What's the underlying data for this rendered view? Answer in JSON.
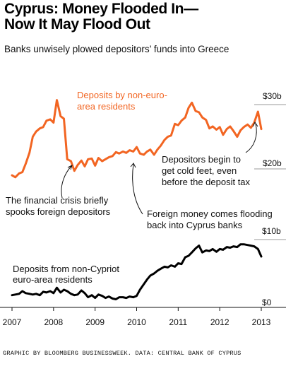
{
  "header": {
    "title_line1": "Cyprus: Money Flooded In—",
    "title_line2": "Now It May Flood Out",
    "subtitle": "Banks unwisely plowed depositors’ funds into Greece"
  },
  "footer": {
    "credit": "GRAPHIC BY BLOOMBERG BUSINESSWEEK. DATA: CENTRAL BANK OF CYPRUS"
  },
  "colors": {
    "non_euro_series": "#f26522",
    "euro_series": "#000000"
  },
  "annotations": {
    "non_euro_label_line1": "Deposits by non-euro-",
    "non_euro_label_line2": "area residents",
    "euro_label_line1": "Deposits from non-Cypriot",
    "euro_label_line2": "euro-area residents",
    "crisis_line1": "The financial crisis briefly",
    "crisis_line2": "spooks foreign depositors",
    "flood_line1": "Foreign money comes flooding",
    "flood_line2": "back into Cyprus banks",
    "feet_line1": "Depositors begin to",
    "feet_line2": "get cold feet, even",
    "feet_line3": "before the deposit tax"
  },
  "chart_data": [
    {
      "type": "line",
      "name": "Deposits by non-euro-area residents",
      "ylabel_ticks": [
        "$30b",
        "$20b"
      ],
      "ylim": [
        11.5,
        33
      ],
      "xlim": [
        2007.0,
        2013.0
      ],
      "x_ticks": [
        "2007",
        "2008",
        "2009",
        "2010",
        "2011",
        "2012",
        "2013"
      ],
      "x": [
        2007.0,
        2007.08,
        2007.17,
        2007.25,
        2007.33,
        2007.42,
        2007.5,
        2007.58,
        2007.67,
        2007.75,
        2007.83,
        2007.92,
        2008.0,
        2008.08,
        2008.17,
        2008.25,
        2008.33,
        2008.42,
        2008.5,
        2008.58,
        2008.67,
        2008.75,
        2008.83,
        2008.92,
        2009.0,
        2009.08,
        2009.17,
        2009.25,
        2009.33,
        2009.42,
        2009.5,
        2009.58,
        2009.67,
        2009.75,
        2009.83,
        2009.92,
        2010.0,
        2010.08,
        2010.17,
        2010.25,
        2010.33,
        2010.42,
        2010.5,
        2010.58,
        2010.67,
        2010.75,
        2010.83,
        2010.92,
        2011.0,
        2011.08,
        2011.17,
        2011.25,
        2011.33,
        2011.42,
        2011.5,
        2011.58,
        2011.67,
        2011.75,
        2011.83,
        2011.92,
        2012.0,
        2012.08,
        2012.17,
        2012.25,
        2012.33,
        2012.42,
        2012.5,
        2012.58,
        2012.67,
        2012.75,
        2012.83,
        2012.92,
        2013.0
      ],
      "y": [
        19.0,
        18.7,
        19.3,
        19.5,
        20.8,
        22.5,
        25.0,
        25.8,
        26.3,
        26.5,
        27.5,
        27.7,
        27.2,
        30.7,
        28.2,
        27.8,
        21.5,
        21.2,
        19.7,
        20.6,
        21.3,
        20.4,
        21.5,
        21.6,
        20.5,
        21.7,
        21.2,
        21.5,
        21.8,
        22.0,
        22.6,
        22.4,
        22.7,
        22.5,
        22.9,
        22.7,
        23.4,
        22.4,
        22.2,
        22.7,
        23.0,
        22.2,
        23.0,
        23.6,
        24.5,
        25.0,
        25.2,
        27.0,
        26.8,
        27.5,
        28.0,
        29.5,
        30.3,
        29.0,
        28.8,
        28.0,
        27.6,
        26.3,
        26.6,
        26.1,
        26.5,
        25.3,
        26.2,
        26.6,
        25.9,
        25.0,
        26.0,
        26.5,
        26.9,
        26.4,
        27.2,
        28.9,
        26.2
      ]
    },
    {
      "type": "line",
      "name": "Deposits from non-Cypriot euro-area residents",
      "ylabel_ticks": [
        "$10b",
        "$0"
      ],
      "ylim": [
        0,
        10
      ],
      "xlim": [
        2007.0,
        2013.0
      ],
      "x_ticks": [
        "2007",
        "2008",
        "2009",
        "2010",
        "2011",
        "2012",
        "2013"
      ],
      "x": [
        2007.0,
        2007.08,
        2007.17,
        2007.25,
        2007.33,
        2007.42,
        2007.5,
        2007.58,
        2007.67,
        2007.75,
        2007.83,
        2007.92,
        2008.0,
        2008.08,
        2008.17,
        2008.25,
        2008.33,
        2008.42,
        2008.5,
        2008.58,
        2008.67,
        2008.75,
        2008.83,
        2008.92,
        2009.0,
        2009.08,
        2009.17,
        2009.25,
        2009.33,
        2009.42,
        2009.5,
        2009.58,
        2009.67,
        2009.75,
        2009.83,
        2009.92,
        2010.0,
        2010.08,
        2010.17,
        2010.25,
        2010.33,
        2010.42,
        2010.5,
        2010.58,
        2010.67,
        2010.75,
        2010.83,
        2010.92,
        2011.0,
        2011.08,
        2011.17,
        2011.25,
        2011.33,
        2011.42,
        2011.5,
        2011.58,
        2011.67,
        2011.75,
        2011.83,
        2011.92,
        2012.0,
        2012.08,
        2012.17,
        2012.25,
        2012.33,
        2012.42,
        2012.5,
        2012.58,
        2012.67,
        2012.75,
        2012.83,
        2012.92,
        2013.0
      ],
      "y": [
        1.8,
        1.9,
        2.0,
        2.4,
        2.1,
        2.0,
        1.9,
        2.0,
        1.8,
        2.3,
        2.2,
        2.4,
        2.1,
        2.9,
        2.2,
        2.6,
        2.4,
        2.0,
        1.8,
        1.9,
        2.5,
        2.1,
        1.5,
        1.8,
        1.4,
        1.9,
        1.7,
        1.4,
        1.6,
        1.3,
        1.2,
        1.5,
        1.5,
        1.4,
        1.6,
        1.5,
        1.7,
        2.6,
        3.4,
        4.1,
        4.7,
        5.0,
        5.4,
        5.7,
        6.0,
        5.9,
        6.2,
        6.0,
        6.5,
        6.4,
        7.4,
        7.6,
        8.1,
        8.7,
        9.1,
        8.1,
        8.4,
        8.3,
        8.6,
        8.2,
        8.6,
        8.5,
        8.9,
        8.8,
        9.0,
        8.9,
        9.3,
        9.3,
        9.2,
        9.1,
        9.0,
        8.6,
        7.5
      ]
    }
  ]
}
